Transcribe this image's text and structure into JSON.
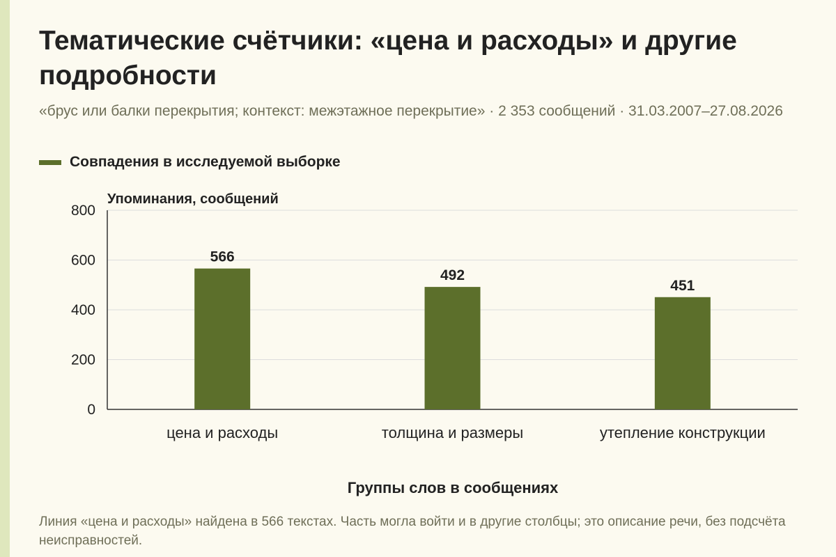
{
  "header": {
    "title": "Тематические счётчики: «цена и расходы» и другие подробности",
    "subtitle": "«брус или балки перекрытия; контекст: межэтажное перекрытие» · 2 353 сообщений · 31.03.2007–27.08.2026"
  },
  "legend": {
    "label": "Совпадения в исследуемой выборке"
  },
  "colors": {
    "bar": "#5c6f2b",
    "accent_strip": "#dfe7bd",
    "background": "#fcfaf0",
    "gridline": "#dddddd",
    "muted_text": "#6f6f58"
  },
  "chart_data": {
    "type": "bar",
    "categories": [
      "цена и расходы",
      "толщина и размеры",
      "утепление конструкции"
    ],
    "series": [
      {
        "name": "Совпадения в исследуемой выборке",
        "values": [
          566,
          492,
          451
        ]
      }
    ],
    "ylabel": "Упоминания, сообщений",
    "xlabel": "Группы слов в сообщениях",
    "ylim": [
      0,
      800
    ],
    "yticks": [
      0,
      200,
      400,
      600,
      800
    ],
    "grid": true,
    "legend_position": "top-left",
    "data_labels": true
  },
  "footer": {
    "note": "Линия «цена и расходы» найдена в 566 текстах. Часть могла войти и в другие столбцы; это описание речи, без подсчёта неисправностей."
  }
}
